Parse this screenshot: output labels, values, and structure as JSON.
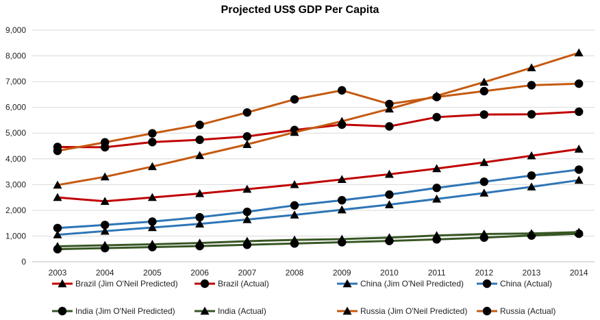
{
  "chart_data": {
    "type": "line",
    "title": "Projected US$ GDP Per Capita",
    "xlabel": "",
    "ylabel": "",
    "x": [
      2003,
      2004,
      2005,
      2006,
      2007,
      2008,
      2009,
      2010,
      2011,
      2012,
      2013,
      2014
    ],
    "ylim": [
      0,
      9000
    ],
    "yticks": [
      0,
      1000,
      2000,
      3000,
      4000,
      5000,
      6000,
      7000,
      8000,
      9000
    ],
    "ytick_labels": [
      "0",
      "1,000",
      "2,000",
      "3,000",
      "4,000",
      "5,000",
      "6,000",
      "7,000",
      "8,000",
      "9,000"
    ],
    "grid": "horizontal",
    "legend_position": "bottom",
    "series": [
      {
        "name": "Brazil (Jim O'Neil Predicted)",
        "color": "#C00000",
        "marker": "triangle",
        "values": [
          2500,
          2350,
          2500,
          2650,
          2820,
          3000,
          3200,
          3400,
          3620,
          3860,
          4120,
          4380
        ]
      },
      {
        "name": "Brazil (Actual)",
        "color": "#C00000",
        "marker": "circle",
        "values": [
          4460,
          4450,
          4650,
          4740,
          4870,
          5120,
          5330,
          5260,
          5620,
          5720,
          5730,
          5830
        ]
      },
      {
        "name": "China (Jim O'Neil Predicted)",
        "color": "#2E75B6",
        "marker": "triangle",
        "values": [
          1050,
          1190,
          1330,
          1470,
          1640,
          1820,
          2020,
          2220,
          2440,
          2670,
          2910,
          3170
        ]
      },
      {
        "name": "China (Actual)",
        "color": "#2E75B6",
        "marker": "circle",
        "values": [
          1310,
          1430,
          1560,
          1730,
          1940,
          2190,
          2390,
          2610,
          2870,
          3110,
          3350,
          3580
        ]
      },
      {
        "name": "India (Jim O'Neil Predicted)",
        "color": "#375623",
        "marker": "circle",
        "values": [
          490,
          530,
          570,
          610,
          660,
          710,
          760,
          810,
          870,
          940,
          1020,
          1090
        ]
      },
      {
        "name": "India (Actual)",
        "color": "#375623",
        "marker": "triangle",
        "values": [
          600,
          640,
          680,
          730,
          800,
          850,
          880,
          940,
          1020,
          1080,
          1100,
          1150
        ]
      },
      {
        "name": "Russia (Jim O'Neil Predicted)",
        "color": "#C55A11",
        "marker": "triangle",
        "values": [
          2980,
          3300,
          3700,
          4130,
          4560,
          5030,
          5460,
          5940,
          6450,
          6980,
          7540,
          8120
        ]
      },
      {
        "name": "Russia (Actual)",
        "color": "#C55A11",
        "marker": "circle",
        "values": [
          4310,
          4640,
          4990,
          5320,
          5800,
          6310,
          6660,
          6130,
          6400,
          6630,
          6860,
          6920
        ]
      }
    ]
  }
}
